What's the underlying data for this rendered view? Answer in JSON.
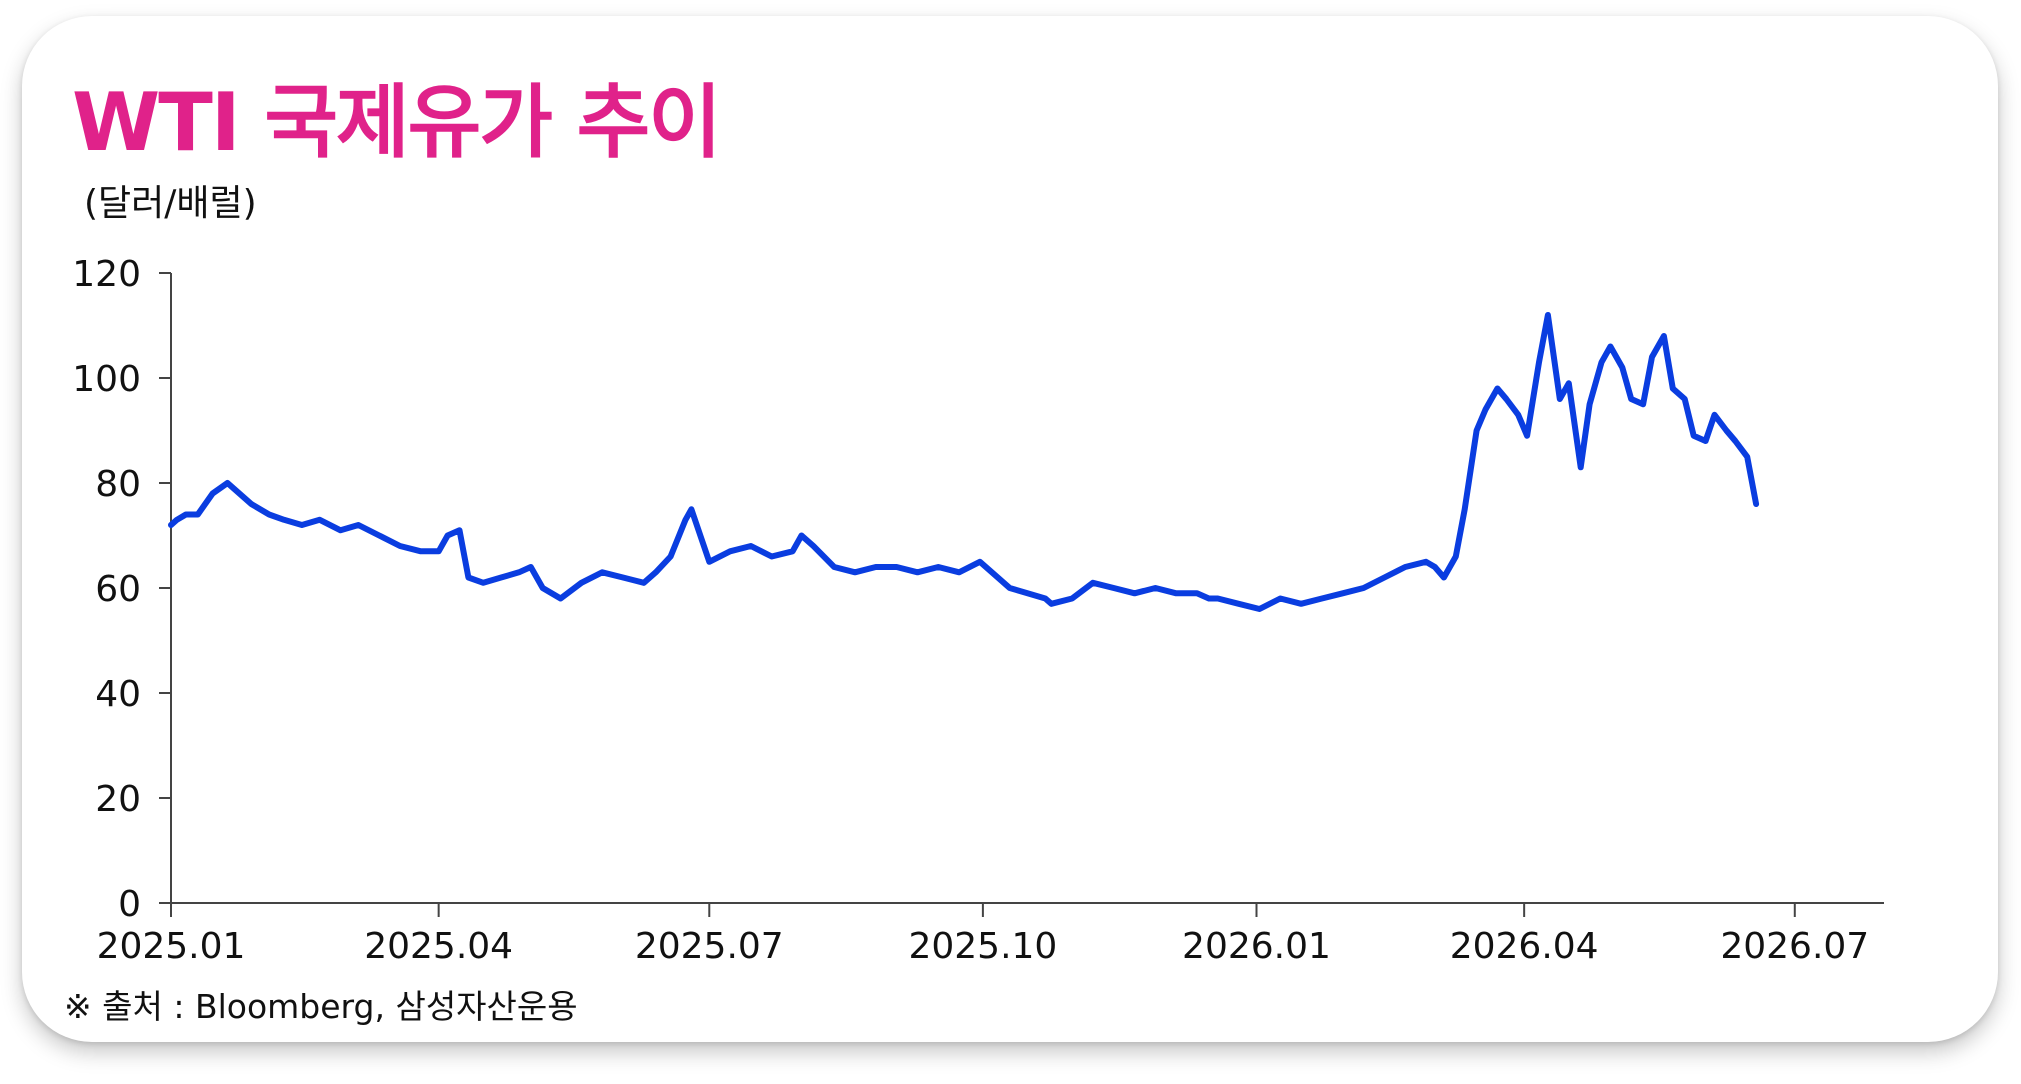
{
  "chart_data": {
    "type": "line",
    "title": "WTI 국제유가 추이",
    "ylabel": "(달러/배럴)",
    "xlabel": "",
    "source": "※ 출처 : Bloomberg, 삼성자산운용",
    "ylim": [
      0,
      120
    ],
    "yticks": [
      "0",
      "20",
      "40",
      "60",
      "80",
      "100",
      "120"
    ],
    "yticks_values": [
      0,
      20,
      40,
      60,
      80,
      100,
      120
    ],
    "xticks": [
      "2025.01",
      "2025.04",
      "2025.07",
      "2025.10",
      "2026.01",
      "2026.04",
      "2026.07"
    ],
    "xticks_dates": [
      "2025-01-01",
      "2025-04-01",
      "2025-07-01",
      "2025-10-01",
      "2026-01-01",
      "2026-04-01",
      "2026-07-01"
    ],
    "xlim": [
      "2025-01-01",
      "2026-07-31"
    ],
    "grid": false,
    "legend": "none",
    "series": [
      {
        "color": "#0a3de0",
        "x": [
          "2025-01-01",
          "2025-01-03",
          "2025-01-06",
          "2025-01-10",
          "2025-01-15",
          "2025-01-20",
          "2025-01-24",
          "2025-01-28",
          "2025-02-03",
          "2025-02-08",
          "2025-02-14",
          "2025-02-20",
          "2025-02-27",
          "2025-03-05",
          "2025-03-12",
          "2025-03-19",
          "2025-03-26",
          "2025-04-01",
          "2025-04-04",
          "2025-04-08",
          "2025-04-11",
          "2025-04-16",
          "2025-04-22",
          "2025-04-28",
          "2025-05-02",
          "2025-05-06",
          "2025-05-12",
          "2025-05-19",
          "2025-05-26",
          "2025-06-02",
          "2025-06-09",
          "2025-06-13",
          "2025-06-18",
          "2025-06-23",
          "2025-06-25",
          "2025-07-01",
          "2025-07-08",
          "2025-07-15",
          "2025-07-22",
          "2025-07-29",
          "2025-08-01",
          "2025-08-05",
          "2025-08-12",
          "2025-08-19",
          "2025-08-26",
          "2025-09-02",
          "2025-09-09",
          "2025-09-16",
          "2025-09-23",
          "2025-09-30",
          "2025-10-06",
          "2025-10-10",
          "2025-10-16",
          "2025-10-22",
          "2025-10-24",
          "2025-10-31",
          "2025-11-07",
          "2025-11-14",
          "2025-11-21",
          "2025-11-28",
          "2025-12-05",
          "2025-12-12",
          "2025-12-16",
          "2025-12-19",
          "2025-12-26",
          "2026-01-02",
          "2026-01-09",
          "2026-01-16",
          "2026-01-23",
          "2026-01-30",
          "2026-02-06",
          "2026-02-13",
          "2026-02-20",
          "2026-02-27",
          "2026-03-02",
          "2026-03-05",
          "2026-03-09",
          "2026-03-12",
          "2026-03-16",
          "2026-03-19",
          "2026-03-23",
          "2026-03-26",
          "2026-03-30",
          "2026-04-02",
          "2026-04-06",
          "2026-04-09",
          "2026-04-13",
          "2026-04-16",
          "2026-04-20",
          "2026-04-23",
          "2026-04-27",
          "2026-04-30",
          "2026-05-04",
          "2026-05-07",
          "2026-05-11",
          "2026-05-14",
          "2026-05-18",
          "2026-05-21",
          "2026-05-25",
          "2026-05-28",
          "2026-06-01",
          "2026-06-04",
          "2026-06-08",
          "2026-06-11",
          "2026-06-15",
          "2026-06-18"
        ],
        "y": [
          72,
          73,
          74,
          74,
          78,
          80,
          78,
          76,
          74,
          73,
          72,
          73,
          71,
          72,
          70,
          68,
          67,
          67,
          70,
          71,
          62,
          61,
          62,
          63,
          64,
          60,
          58,
          61,
          63,
          62,
          61,
          63,
          66,
          73,
          75,
          65,
          67,
          68,
          66,
          67,
          70,
          68,
          64,
          63,
          64,
          64,
          63,
          64,
          63,
          65,
          62,
          60,
          59,
          58,
          57,
          58,
          61,
          60,
          59,
          60,
          59,
          59,
          58,
          58,
          57,
          56,
          58,
          57,
          58,
          59,
          60,
          62,
          64,
          65,
          64,
          62,
          66,
          75,
          90,
          94,
          98,
          96,
          93,
          89,
          103,
          112,
          96,
          99,
          83,
          95,
          103,
          106,
          102,
          96,
          95,
          104,
          108,
          98,
          96,
          89,
          88,
          93,
          90,
          88,
          85,
          76
        ]
      }
    ]
  }
}
